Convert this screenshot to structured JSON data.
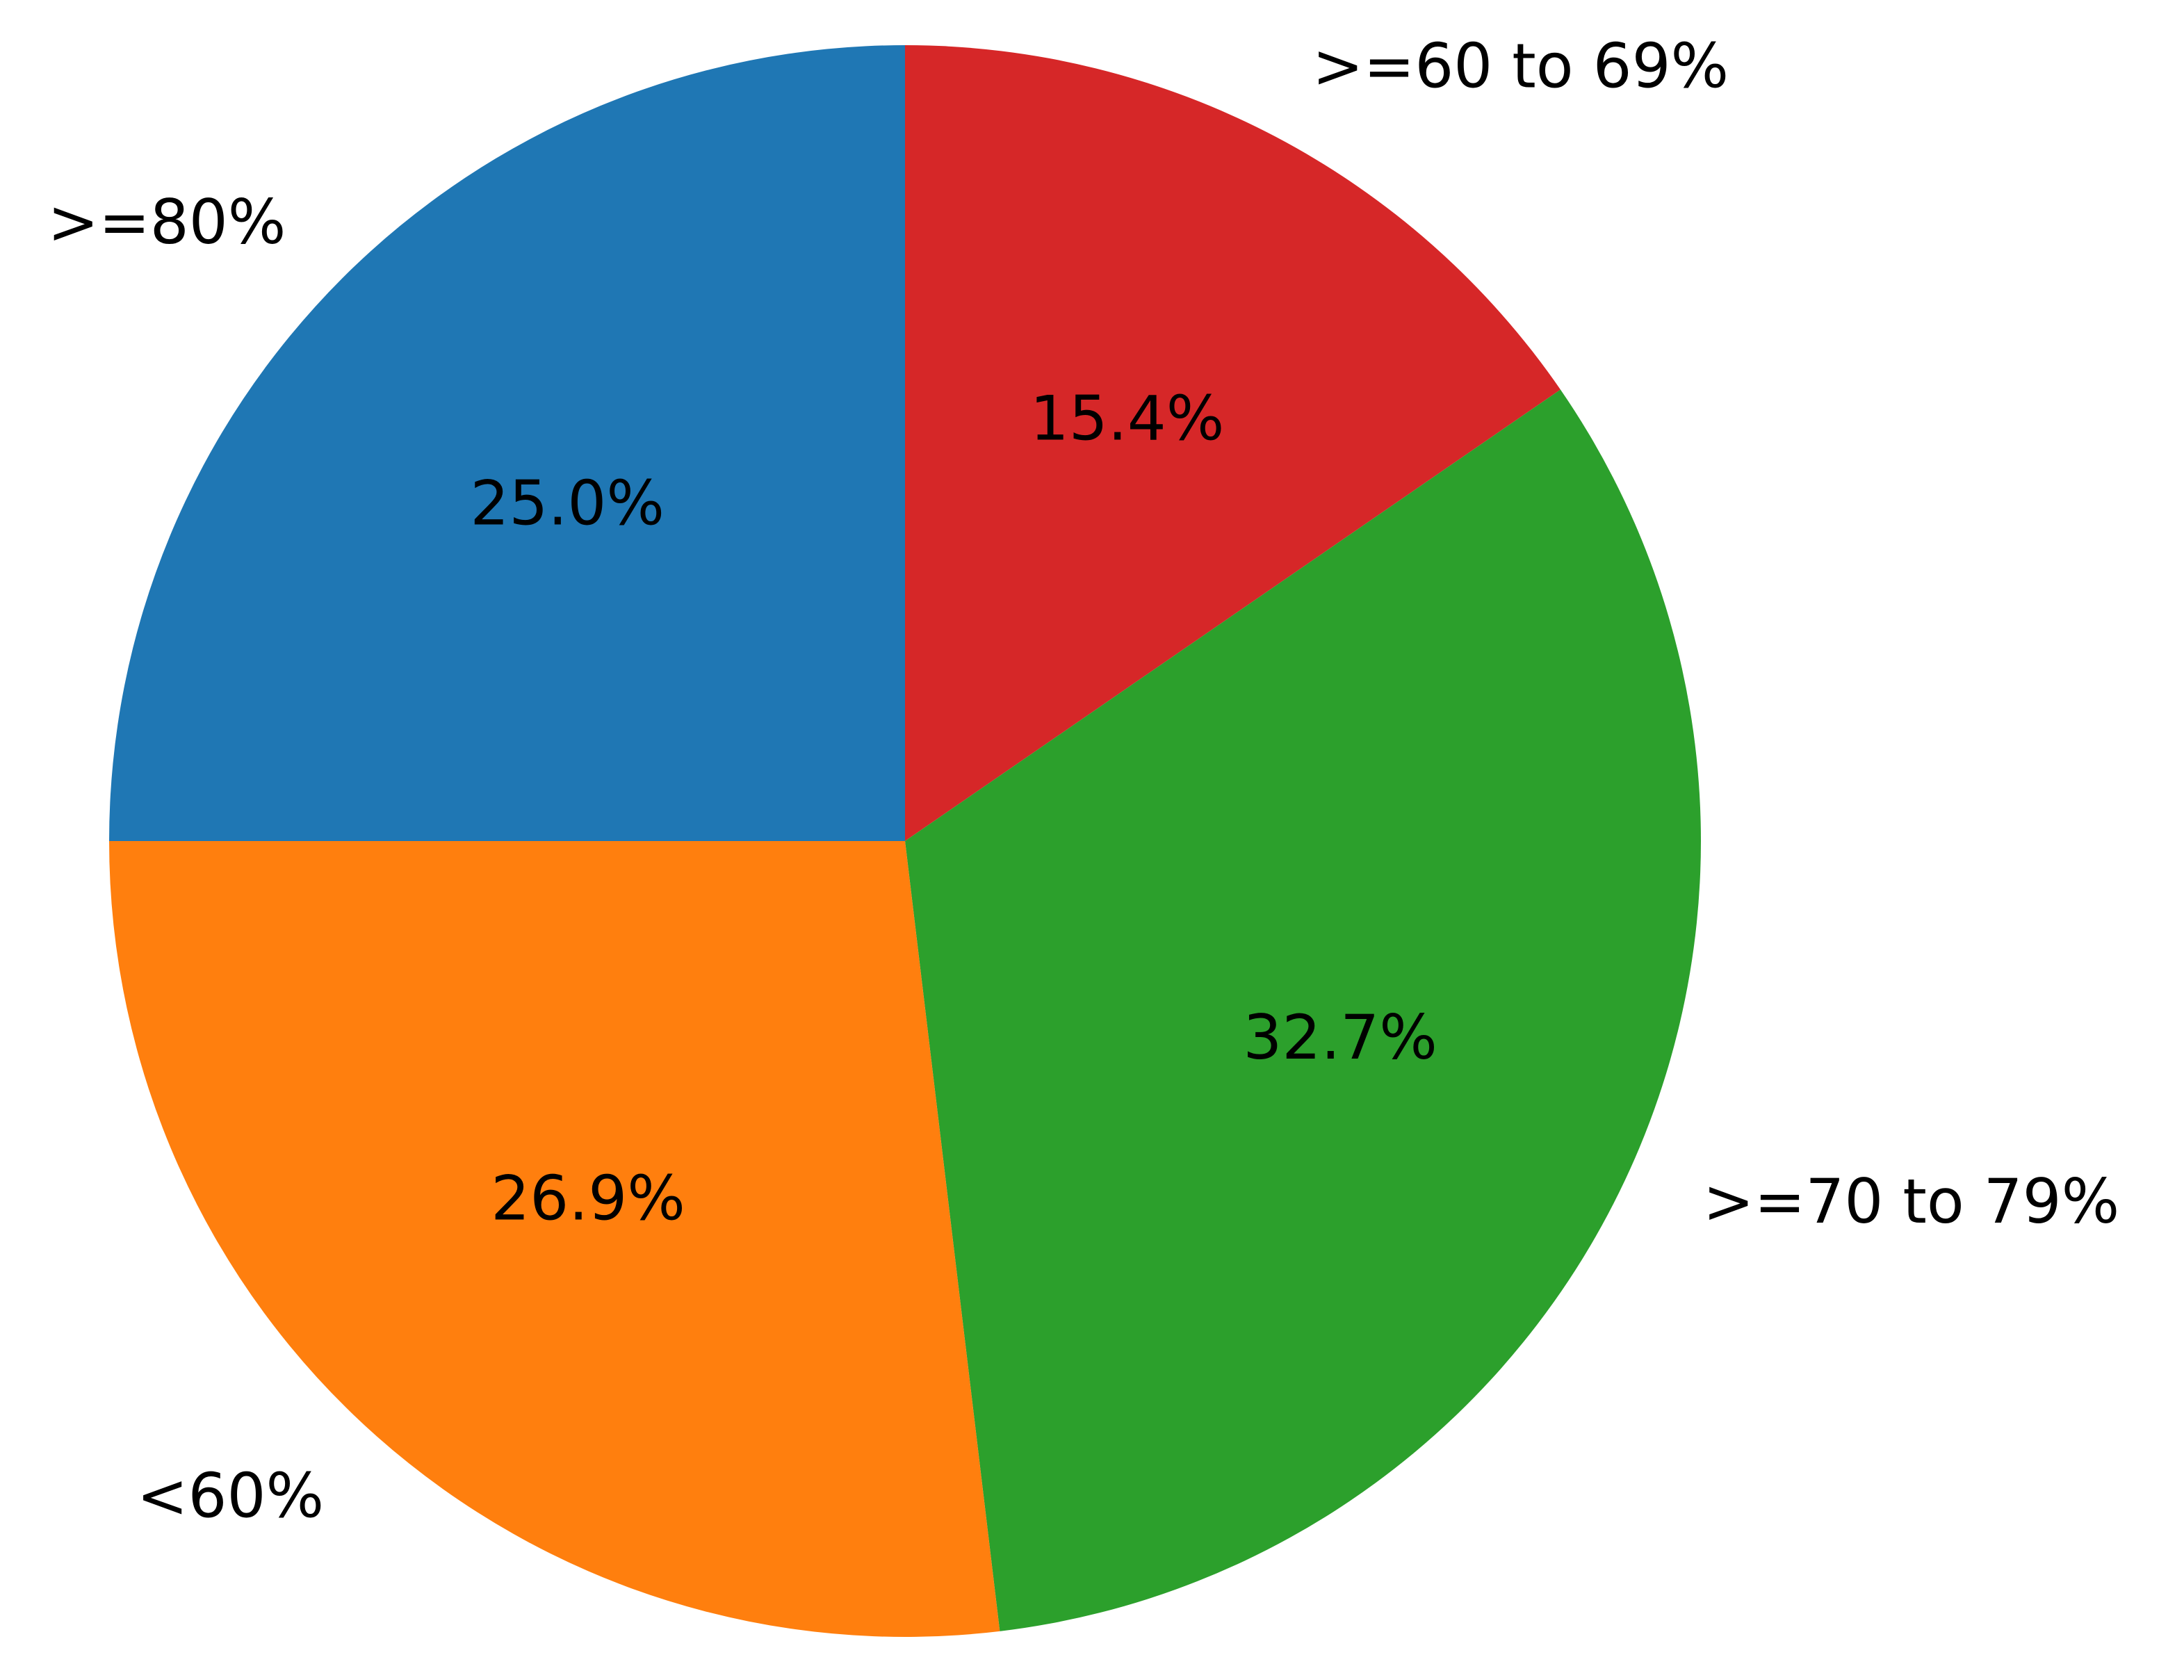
{
  "chart_data": {
    "type": "pie",
    "title": "",
    "start_angle_deg": 90,
    "direction": "clockwise",
    "slices": [
      {
        "label": ">=60 to 69%",
        "value": 15.4,
        "pct_label": "15.4%",
        "color": "#d62728"
      },
      {
        "label": ">=70 to 79%",
        "value": 32.7,
        "pct_label": "32.7%",
        "color": "#2ca02c"
      },
      {
        "label": "<60%",
        "value": 26.9,
        "pct_label": "26.9%",
        "color": "#ff7f0e"
      },
      {
        "label": ">=80%",
        "value": 25.0,
        "pct_label": "25.0%",
        "color": "#1f77b4"
      }
    ]
  }
}
